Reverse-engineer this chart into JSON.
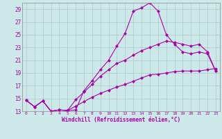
{
  "xlabel": "Windchill (Refroidissement éolien,°C)",
  "background_color": "#cce8e8",
  "grid_color": "#aac8c8",
  "line_color": "#aa00aa",
  "xlim": [
    -0.5,
    23.5
  ],
  "ylim": [
    13,
    30
  ],
  "yticks": [
    13,
    15,
    17,
    19,
    21,
    23,
    25,
    27,
    29
  ],
  "xticks": [
    0,
    1,
    2,
    3,
    4,
    5,
    6,
    7,
    8,
    9,
    10,
    11,
    12,
    13,
    14,
    15,
    16,
    17,
    18,
    19,
    20,
    21,
    22,
    23
  ],
  "line1_x": [
    0,
    1,
    2,
    3,
    4,
    5,
    6,
    7,
    8,
    9,
    10,
    11,
    12,
    13,
    14,
    15,
    16,
    17,
    18,
    19,
    20,
    21,
    22,
    23
  ],
  "line1_y": [
    14.7,
    13.7,
    14.6,
    13.0,
    13.2,
    13.1,
    13.2,
    16.2,
    17.8,
    19.5,
    21.0,
    23.2,
    25.2,
    28.7,
    29.2,
    30.0,
    28.7,
    25.0,
    23.5,
    22.3,
    22.0,
    22.3,
    22.0,
    19.3
  ],
  "line2_x": [
    0,
    1,
    2,
    3,
    4,
    5,
    6,
    7,
    8,
    9,
    10,
    11,
    12,
    13,
    14,
    15,
    16,
    17,
    18,
    19,
    20,
    21,
    22,
    23
  ],
  "line2_y": [
    14.7,
    13.7,
    14.6,
    13.0,
    13.2,
    13.1,
    14.8,
    16.0,
    17.2,
    18.5,
    19.5,
    20.5,
    21.0,
    21.8,
    22.5,
    23.0,
    23.5,
    24.0,
    23.8,
    23.5,
    23.2,
    23.5,
    22.3,
    19.3
  ],
  "line3_x": [
    0,
    1,
    2,
    3,
    4,
    5,
    6,
    7,
    8,
    9,
    10,
    11,
    12,
    13,
    14,
    15,
    16,
    17,
    18,
    19,
    20,
    21,
    22,
    23
  ],
  "line3_y": [
    14.7,
    13.7,
    14.6,
    13.0,
    13.2,
    13.1,
    13.8,
    14.5,
    15.2,
    15.8,
    16.3,
    16.8,
    17.2,
    17.7,
    18.2,
    18.7,
    18.8,
    19.0,
    19.2,
    19.3,
    19.3,
    19.3,
    19.5,
    19.7
  ]
}
